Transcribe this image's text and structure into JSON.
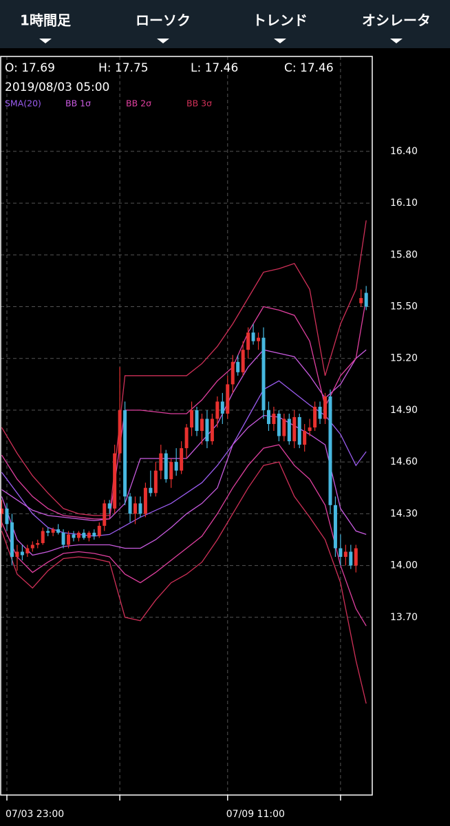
{
  "menu": {
    "tabs": [
      "1時間足",
      "ローソク",
      "トレンド",
      "オシレータ"
    ]
  },
  "chart_data": {
    "type": "candlestick",
    "info": {
      "open": "O: 17.69",
      "high": "H: 17.75",
      "low": "L: 17.46",
      "close": "C: 17.46",
      "date": "2019/08/03 05:00"
    },
    "up_color": "#e8312f",
    "down_color": "#47b8e0",
    "ylim": [
      12.67,
      16.95
    ],
    "yticks": [
      {
        "value": 13.7,
        "label": "13.70"
      },
      {
        "value": 14,
        "label": "14.00"
      },
      {
        "value": 14.3,
        "label": "14.30"
      },
      {
        "value": 14.6,
        "label": "14.60"
      },
      {
        "value": 14.9,
        "label": "14.90"
      },
      {
        "value": 15.2,
        "label": "15.20"
      },
      {
        "value": 15.5,
        "label": "15.50"
      },
      {
        "value": 15.8,
        "label": "15.80"
      },
      {
        "value": 16.1,
        "label": "16.10"
      },
      {
        "value": 16.4,
        "label": "16.40"
      }
    ],
    "grid": true,
    "categories": [
      null,
      "07/03 23:00",
      null,
      null,
      null,
      null,
      null,
      null,
      null,
      null,
      null,
      null,
      null,
      null,
      null,
      null,
      null,
      null,
      null,
      null,
      null,
      null,
      null,
      null,
      null,
      null,
      null,
      null,
      null,
      null,
      null,
      null,
      null,
      null,
      null,
      null,
      null,
      null,
      null,
      null,
      null,
      null,
      null,
      null,
      "07/09 11:00",
      null,
      null,
      null,
      null,
      null,
      null,
      null,
      null,
      null,
      null,
      null,
      null,
      null,
      null,
      null,
      null,
      null,
      null,
      null,
      null,
      null,
      null,
      null,
      null,
      null,
      null,
      null
    ],
    "xticks": [
      1,
      23,
      44,
      66
    ],
    "ohlc": [
      [
        14.3,
        14.38,
        14.22,
        14.33
      ],
      [
        14.33,
        14.36,
        14.2,
        14.24
      ],
      [
        14.25,
        14.3,
        14.0,
        14.05
      ],
      [
        14.05,
        14.12,
        13.97,
        14.08
      ],
      [
        14.08,
        14.12,
        14.03,
        14.06
      ],
      [
        14.07,
        14.12,
        14.05,
        14.1
      ],
      [
        14.1,
        14.14,
        14.08,
        14.12
      ],
      [
        14.12,
        14.15,
        14.1,
        14.13
      ],
      [
        14.13,
        14.22,
        14.12,
        14.2
      ],
      [
        14.2,
        14.22,
        14.17,
        14.19
      ],
      [
        14.19,
        14.22,
        14.17,
        14.21
      ],
      [
        14.21,
        14.24,
        14.18,
        14.19
      ],
      [
        14.19,
        14.21,
        14.1,
        14.12
      ],
      [
        14.12,
        14.2,
        14.1,
        14.18
      ],
      [
        14.18,
        14.2,
        14.14,
        14.16
      ],
      [
        14.16,
        14.2,
        14.14,
        14.19
      ],
      [
        14.19,
        14.21,
        14.15,
        14.16
      ],
      [
        14.16,
        14.2,
        14.14,
        14.19
      ],
      [
        14.19,
        14.21,
        14.15,
        14.17
      ],
      [
        14.17,
        14.25,
        14.16,
        14.23
      ],
      [
        14.23,
        14.38,
        14.2,
        14.36
      ],
      [
        14.36,
        14.38,
        14.3,
        14.33
      ],
      [
        14.33,
        14.7,
        14.3,
        14.65
      ],
      [
        14.65,
        15.15,
        14.6,
        14.9
      ],
      [
        14.9,
        14.95,
        14.35,
        14.4
      ],
      [
        14.4,
        14.42,
        14.25,
        14.3
      ],
      [
        14.3,
        14.4,
        14.24,
        14.36
      ],
      [
        14.36,
        14.4,
        14.28,
        14.3
      ],
      [
        14.3,
        14.48,
        14.28,
        14.45
      ],
      [
        14.45,
        14.55,
        14.4,
        14.42
      ],
      [
        14.42,
        14.6,
        14.4,
        14.55
      ],
      [
        14.55,
        14.7,
        14.5,
        14.65
      ],
      [
        14.65,
        14.67,
        14.48,
        14.5
      ],
      [
        14.5,
        14.62,
        14.45,
        14.6
      ],
      [
        14.6,
        14.68,
        14.52,
        14.55
      ],
      [
        14.55,
        14.72,
        14.53,
        14.68
      ],
      [
        14.68,
        14.82,
        14.62,
        14.8
      ],
      [
        14.8,
        14.95,
        14.75,
        14.9
      ],
      [
        14.9,
        14.92,
        14.75,
        14.78
      ],
      [
        14.78,
        14.88,
        14.7,
        14.85
      ],
      [
        14.85,
        14.9,
        14.68,
        14.72
      ],
      [
        14.72,
        14.88,
        14.7,
        14.85
      ],
      [
        14.85,
        14.98,
        14.8,
        14.95
      ],
      [
        14.95,
        15.0,
        14.82,
        14.88
      ],
      [
        14.88,
        15.1,
        14.85,
        15.05
      ],
      [
        15.05,
        15.22,
        15.0,
        15.18
      ],
      [
        15.18,
        15.22,
        15.1,
        15.12
      ],
      [
        15.12,
        15.3,
        15.1,
        15.25
      ],
      [
        15.25,
        15.38,
        15.2,
        15.35
      ],
      [
        15.35,
        15.4,
        15.28,
        15.3
      ],
      [
        15.3,
        15.35,
        15.25,
        15.32
      ],
      [
        15.32,
        15.38,
        14.85,
        14.9
      ],
      [
        14.9,
        14.95,
        14.78,
        14.82
      ],
      [
        14.82,
        14.92,
        14.78,
        14.88
      ],
      [
        14.88,
        14.9,
        14.72,
        14.75
      ],
      [
        14.75,
        14.88,
        14.72,
        14.85
      ],
      [
        14.85,
        14.88,
        14.7,
        14.72
      ],
      [
        14.72,
        14.9,
        14.68,
        14.86
      ],
      [
        14.86,
        14.88,
        14.68,
        14.7
      ],
      [
        14.7,
        14.82,
        14.66,
        14.78
      ],
      [
        14.78,
        14.85,
        14.75,
        14.8
      ],
      [
        14.8,
        14.95,
        14.78,
        14.92
      ],
      [
        14.92,
        14.95,
        14.82,
        14.85
      ],
      [
        14.85,
        15.0,
        14.82,
        14.98
      ],
      [
        14.98,
        15.02,
        14.3,
        14.35
      ],
      [
        14.35,
        14.4,
        14.05,
        14.1
      ],
      [
        14.1,
        14.18,
        14.0,
        14.05
      ],
      [
        14.05,
        14.12,
        14.0,
        14.08
      ],
      [
        14.08,
        14.12,
        13.98,
        14.0
      ],
      [
        14.0,
        14.12,
        13.96,
        14.1
      ],
      [
        15.52,
        15.6,
        15.5,
        15.55
      ],
      [
        15.58,
        15.62,
        15.48,
        15.5
      ]
    ],
    "band_x": [
      0,
      3,
      6,
      9,
      12,
      15,
      18,
      21,
      24,
      27,
      30,
      33,
      36,
      39,
      42,
      45,
      48,
      51,
      54,
      57,
      60,
      63,
      66,
      69,
      71
    ],
    "bands": [
      {
        "name": "SMA(20)",
        "color": "#9b5cf0",
        "values": [
          14.54,
          14.42,
          14.3,
          14.22,
          14.19,
          14.18,
          14.17,
          14.18,
          14.23,
          14.28,
          14.32,
          14.36,
          14.42,
          14.48,
          14.58,
          14.7,
          14.86,
          15.02,
          15.07,
          15.0,
          14.93,
          14.87,
          14.76,
          14.58,
          14.66
        ]
      },
      {
        "name": "BB 1σ",
        "color": "#c95be0",
        "upper": [
          14.44,
          14.38,
          14.32,
          14.29,
          14.28,
          14.27,
          14.26,
          14.27,
          14.36,
          14.62,
          14.62,
          14.62,
          14.62,
          14.72,
          14.82,
          15.0,
          15.15,
          15.25,
          15.23,
          15.21,
          15.1,
          14.97,
          15.05,
          15.2,
          15.25
        ],
        "lower": [
          14.4,
          14.15,
          14.06,
          14.08,
          14.11,
          14.12,
          14.12,
          14.12,
          14.1,
          14.1,
          14.15,
          14.22,
          14.3,
          14.36,
          14.45,
          14.7,
          14.8,
          14.87,
          14.86,
          14.81,
          14.76,
          14.7,
          14.33,
          14.2,
          14.18
        ]
      },
      {
        "name": "BB 2σ",
        "color": "#e040a0",
        "upper": [
          14.64,
          14.5,
          14.4,
          14.33,
          14.29,
          14.28,
          14.27,
          14.27,
          14.9,
          14.9,
          14.89,
          14.88,
          14.88,
          14.96,
          15.07,
          15.15,
          15.35,
          15.5,
          15.48,
          15.45,
          15.3,
          14.92,
          15.1,
          15.2,
          15.55
        ],
        "lower": [
          14.25,
          14.05,
          13.96,
          14.02,
          14.07,
          14.08,
          14.07,
          14.05,
          13.95,
          13.9,
          13.96,
          14.03,
          14.1,
          14.17,
          14.3,
          14.45,
          14.58,
          14.68,
          14.7,
          14.58,
          14.5,
          14.35,
          14.0,
          13.75,
          13.65
        ]
      },
      {
        "name": "BB 3σ",
        "color": "#d03058",
        "upper": [
          14.8,
          14.65,
          14.52,
          14.42,
          14.33,
          14.3,
          14.29,
          14.29,
          15.1,
          15.1,
          15.1,
          15.1,
          15.1,
          15.17,
          15.27,
          15.4,
          15.55,
          15.7,
          15.72,
          15.75,
          15.6,
          15.1,
          15.4,
          15.6,
          16.0
        ],
        "lower": [
          14.2,
          13.95,
          13.87,
          13.97,
          14.04,
          14.05,
          14.04,
          14.02,
          13.7,
          13.68,
          13.8,
          13.9,
          13.95,
          14.02,
          14.15,
          14.3,
          14.45,
          14.58,
          14.6,
          14.4,
          14.28,
          14.15,
          13.9,
          13.45,
          13.2
        ]
      }
    ]
  }
}
